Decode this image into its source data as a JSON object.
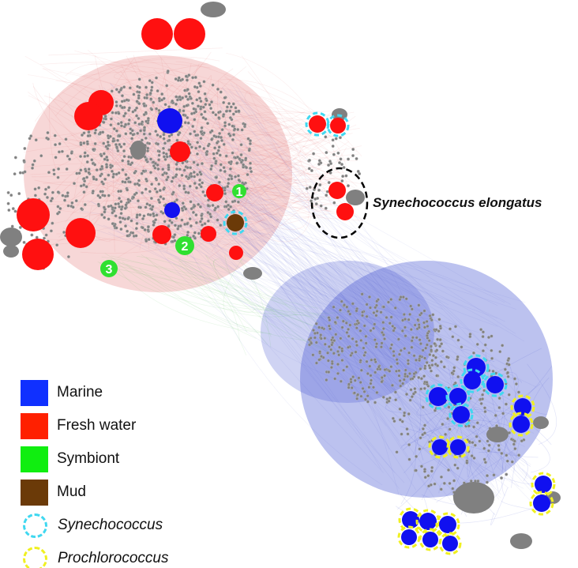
{
  "annotation": {
    "label": "Synechococcus elongatus"
  },
  "node_numbers": [
    "1",
    "2",
    "3"
  ],
  "legend": [
    {
      "label": "Marine",
      "color": "#1030ff",
      "shape": "square"
    },
    {
      "label": "Fresh water",
      "color": "#ff2000",
      "shape": "square"
    },
    {
      "label": "Symbiont",
      "color": "#10ee10",
      "shape": "square"
    },
    {
      "label": "Mud",
      "color": "#6b3a08",
      "shape": "square"
    },
    {
      "label": "Synechococcus",
      "color": "#40d8f0",
      "shape": "dashed-ring"
    },
    {
      "label": "Prochlorococcus",
      "color": "#f0f020",
      "shape": "dashed-ring"
    }
  ],
  "colors": {
    "node": "#808080",
    "edge_marine": "#4050d0",
    "edge_fresh": "#e06060",
    "edge_symbiont": "#50c050"
  }
}
